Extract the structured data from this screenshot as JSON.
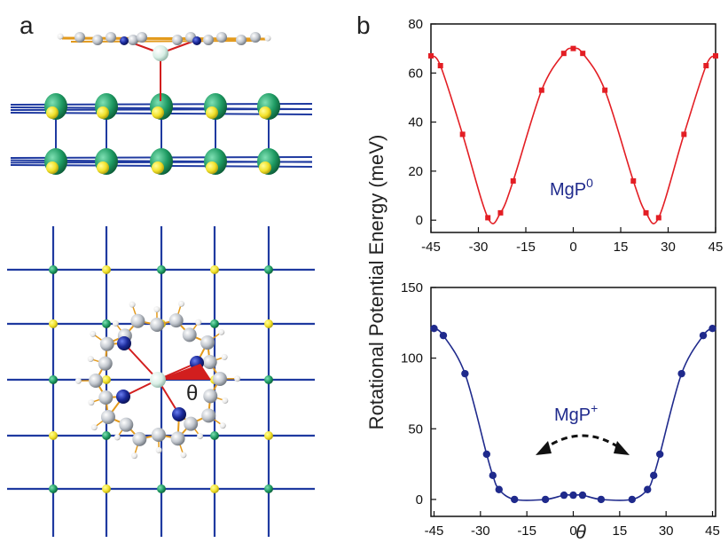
{
  "panel_labels": {
    "a": "a",
    "b": "b"
  },
  "molecule_label": "MgP",
  "angle_symbol": "θ",
  "colors": {
    "red_series": "#e31e24",
    "blue_series": "#1f2a8c",
    "lattice_line": "#1f3aa0",
    "green_atom": "#1e9b63",
    "yellow_atom": "#f2e12a",
    "carbon": "#b9bfc7",
    "nitrogen": "#1b2a9a",
    "magnesium": "#d9efe6",
    "bond": "#e39a1c",
    "mg_n_bond": "#d21e1e"
  },
  "chart_data": [
    {
      "type": "line",
      "ylabel": "Rotational Potential Energy (meV)",
      "xlim": [
        -45,
        45
      ],
      "ylim": [
        -5,
        80
      ],
      "xticks": [
        -45,
        -30,
        -15,
        0,
        15,
        30,
        45
      ],
      "yticks": [
        0,
        20,
        40,
        60,
        80
      ],
      "annotation": {
        "text": "MgP",
        "superscript": "0"
      },
      "series": [
        {
          "color": "#e31e24",
          "marker": "square",
          "x": [
            -45,
            -42,
            -35,
            -27,
            -23,
            -19,
            -10,
            -3,
            0,
            3,
            10,
            19,
            23,
            27,
            35,
            42,
            45
          ],
          "y": [
            67,
            63,
            35,
            1,
            3,
            16,
            53,
            68,
            70,
            68,
            53,
            16,
            3,
            1,
            35,
            63,
            67
          ]
        }
      ]
    },
    {
      "type": "line",
      "xlabel": "θ",
      "xlim": [
        -46,
        46
      ],
      "ylim": [
        -12,
        150
      ],
      "xticks": [
        -45,
        -30,
        -15,
        0,
        15,
        30,
        45
      ],
      "yticks": [
        0,
        50,
        100,
        150
      ],
      "annotation": {
        "text": "MgP",
        "superscript": "+"
      },
      "series": [
        {
          "color": "#1f2a8c",
          "marker": "circle",
          "x": [
            -45,
            -42,
            -35,
            -28,
            -26,
            -24,
            -19,
            -9,
            -3,
            0,
            3,
            9,
            19,
            24,
            26,
            28,
            35,
            42,
            45
          ],
          "y": [
            121,
            116,
            89,
            32,
            17,
            7,
            0,
            0,
            3,
            3,
            3,
            0,
            0,
            7,
            17,
            32,
            89,
            116,
            121
          ]
        }
      ]
    }
  ]
}
